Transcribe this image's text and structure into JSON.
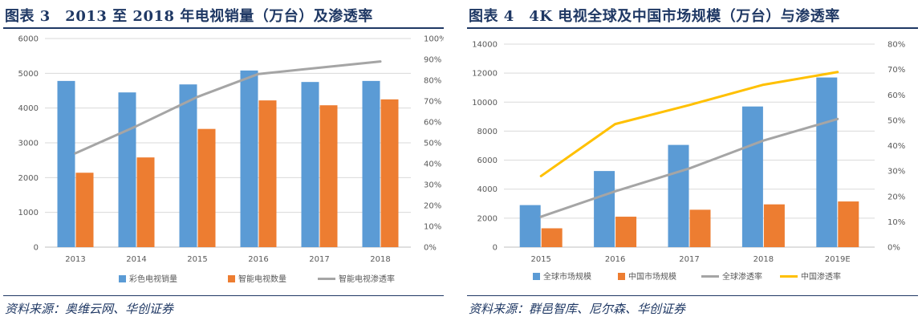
{
  "left": {
    "title": "图表 3　2013 至 2018 年电视销量（万台）及渗透率",
    "source": "资料来源：奥维云网、华创证券"
  },
  "right": {
    "title": "图表 4　4K 电视全球及中国市场规模（万台）与渗透率",
    "source": "资料来源：群邑智库、尼尔森、华创证券"
  },
  "chart_data": [
    {
      "type": "bar",
      "categories": [
        "2013",
        "2014",
        "2015",
        "2016",
        "2017",
        "2018"
      ],
      "series": [
        {
          "name": "彩色电视销量",
          "type": "bar",
          "axis": "left",
          "color": "#5b9bd5",
          "values": [
            4780,
            4450,
            4680,
            5080,
            4750,
            4780
          ]
        },
        {
          "name": "智能电视数量",
          "type": "bar",
          "axis": "left",
          "color": "#ed7d31",
          "values": [
            2140,
            2580,
            3400,
            4220,
            4080,
            4250
          ]
        },
        {
          "name": "智能电视渗透率",
          "type": "line",
          "axis": "right",
          "color": "#a5a5a5",
          "values": [
            0.45,
            0.58,
            0.72,
            0.83,
            0.86,
            0.89
          ]
        }
      ],
      "ylim": [
        0,
        6000
      ],
      "yticks": [
        "0",
        "1000",
        "2000",
        "3000",
        "4000",
        "5000",
        "6000"
      ],
      "y2lim": [
        0,
        1.0
      ],
      "y2ticks": [
        "0%",
        "10%",
        "20%",
        "30%",
        "40%",
        "50%",
        "60%",
        "70%",
        "80%",
        "90%",
        "100%"
      ],
      "grid": true,
      "legend": "bottom"
    },
    {
      "type": "bar",
      "categories": [
        "2015",
        "2016",
        "2017",
        "2018",
        "2019E"
      ],
      "series": [
        {
          "name": "全球市场规模",
          "type": "bar",
          "axis": "left",
          "color": "#5b9bd5",
          "values": [
            2900,
            5250,
            7050,
            9700,
            11700
          ]
        },
        {
          "name": "中国市场规模",
          "type": "bar",
          "axis": "left",
          "color": "#ed7d31",
          "values": [
            1300,
            2100,
            2580,
            2950,
            3150
          ]
        },
        {
          "name": "全球渗透率",
          "type": "line",
          "axis": "right",
          "color": "#a5a5a5",
          "values": [
            0.12,
            0.22,
            0.31,
            0.42,
            0.505
          ]
        },
        {
          "name": "中国渗透率",
          "type": "line",
          "axis": "right",
          "color": "#ffc000",
          "values": [
            0.28,
            0.485,
            0.56,
            0.64,
            0.69
          ]
        }
      ],
      "ylim": [
        0,
        14000
      ],
      "yticks": [
        "0",
        "2000",
        "4000",
        "6000",
        "8000",
        "10000",
        "12000",
        "14000"
      ],
      "y2lim": [
        0,
        0.8
      ],
      "y2ticks": [
        "0%",
        "10%",
        "20%",
        "30%",
        "40%",
        "50%",
        "60%",
        "70%",
        "80%"
      ],
      "grid": true,
      "legend": "bottom"
    }
  ]
}
